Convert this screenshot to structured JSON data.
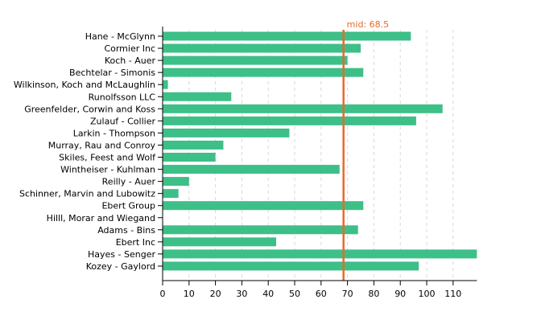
{
  "chart_data": {
    "type": "bar",
    "orientation": "horizontal",
    "categories": [
      "Hane - McGlynn",
      "Cormier Inc",
      "Koch - Auer",
      "Bechtelar - Simonis",
      "Wilkinson, Koch and McLaughlin",
      "Runolfsson LLC",
      "Greenfelder, Corwin and Koss",
      "Zulauf - Collier",
      "Larkin - Thompson",
      "Murray, Rau and Conroy",
      "Skiles, Feest and Wolf",
      "Wintheiser - Kuhlman",
      "Reilly - Auer",
      "Schinner, Marvin and Lubowitz",
      "Ebert Group",
      "Hilll, Morar and Wiegand",
      "Adams - Bins",
      "Ebert Inc",
      "Hayes - Senger",
      "Kozey - Gaylord"
    ],
    "values": [
      94,
      75,
      70,
      76,
      2,
      26,
      106,
      96,
      48,
      23,
      20,
      67,
      10,
      6,
      76,
      0,
      74,
      43,
      119,
      97
    ],
    "xlim": [
      0,
      119
    ],
    "xticks": [
      0,
      10,
      20,
      30,
      40,
      50,
      60,
      70,
      80,
      90,
      100,
      110
    ],
    "grid": "vertical dashed",
    "reference_line": {
      "value": 68.5,
      "label": "mid: 68.5"
    },
    "title": "",
    "xlabel": "",
    "ylabel": ""
  },
  "colors": {
    "bar": "#3dbf88",
    "reference_line": "#e8692b",
    "reference_label": "#e8692b",
    "grid": "#d8d8d8",
    "axis": "#000000"
  }
}
